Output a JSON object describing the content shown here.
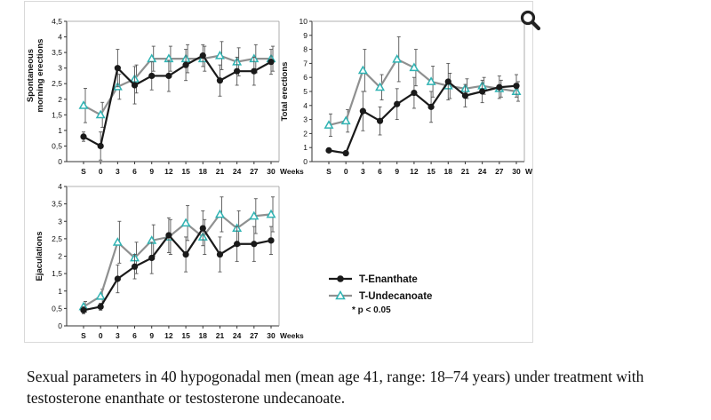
{
  "caption": "Sexual parameters in 40 hypogonadal men (mean age 41, range: 18–74 years) under treatment with testosterone enanthate or testosterone undecanoate.",
  "zoom_icon": "magnifier-icon",
  "legend": {
    "series_1": "T-Enanthate",
    "series_2": "T-Undecanoate",
    "significance": "* p < 0.05"
  },
  "colors": {
    "enanthate": "#1a1a1a",
    "undecanoate": "#2fb3b3",
    "errorbar": "#555555"
  },
  "chart_data": [
    {
      "type": "line",
      "ylabel": "Spontaneous morning erections",
      "xlabel": "Weeks",
      "categories": [
        "S",
        "0",
        "3",
        "6",
        "9",
        "12",
        "15",
        "18",
        "21",
        "24",
        "27",
        "30"
      ],
      "ylim": [
        0,
        4.5
      ],
      "yticks": [
        "0",
        "0,5",
        "1",
        "1,5",
        "2",
        "2,5",
        "3",
        "3,5",
        "4",
        "4,5"
      ],
      "series": [
        {
          "name": "T-Enanthate",
          "values": [
            0.8,
            0.5,
            3.0,
            2.45,
            2.75,
            2.75,
            3.1,
            3.4,
            2.6,
            2.9,
            2.9,
            3.2
          ],
          "errors": [
            0.15,
            0.45,
            0.6,
            0.6,
            0.45,
            0.5,
            0.5,
            0.35,
            0.5,
            0.45,
            0.45,
            0.4
          ]
        },
        {
          "name": "T-Undecanoate",
          "values": [
            1.8,
            1.5,
            2.4,
            2.65,
            3.3,
            3.3,
            3.3,
            3.3,
            3.4,
            3.2,
            3.3,
            3.3
          ],
          "errors": [
            0.55,
            0.4,
            0.4,
            0.45,
            0.4,
            0.4,
            0.45,
            0.4,
            0.45,
            0.45,
            0.45,
            0.4
          ]
        }
      ]
    },
    {
      "type": "line",
      "ylabel": "Total erections",
      "xlabel": "Weeks",
      "categories": [
        "S",
        "0",
        "3",
        "6",
        "9",
        "12",
        "15",
        "18",
        "21",
        "24",
        "27",
        "30"
      ],
      "ylim": [
        0,
        10
      ],
      "yticks": [
        "0",
        "1",
        "2",
        "3",
        "4",
        "5",
        "6",
        "7",
        "8",
        "9",
        "10"
      ],
      "series": [
        {
          "name": "T-Enanthate",
          "values": [
            0.8,
            0.6,
            3.6,
            2.9,
            4.1,
            4.9,
            3.9,
            5.7,
            4.7,
            5.0,
            5.3,
            5.4
          ],
          "errors": [
            0.0,
            0.0,
            1.4,
            1.0,
            1.1,
            1.1,
            1.1,
            1.3,
            0.8,
            0.8,
            0.8,
            0.8
          ]
        },
        {
          "name": "T-Undecanoate",
          "values": [
            2.6,
            2.9,
            6.5,
            5.3,
            7.3,
            6.7,
            5.7,
            5.4,
            5.2,
            5.4,
            5.2,
            5.0
          ],
          "errors": [
            0.8,
            0.8,
            1.5,
            0.9,
            1.6,
            1.3,
            1.1,
            0.9,
            0.7,
            0.6,
            0.6,
            0.7
          ]
        }
      ]
    },
    {
      "type": "line",
      "ylabel": "Ejaculations",
      "xlabel": "Weeks",
      "categories": [
        "S",
        "0",
        "3",
        "6",
        "9",
        "12",
        "15",
        "18",
        "21",
        "24",
        "27",
        "30"
      ],
      "ylim": [
        0,
        4
      ],
      "yticks": [
        "0",
        "0,5",
        "1",
        "1,5",
        "2",
        "2,5",
        "3",
        "3,5",
        "4"
      ],
      "series": [
        {
          "name": "T-Enanthate",
          "values": [
            0.45,
            0.55,
            1.35,
            1.7,
            1.95,
            2.6,
            2.05,
            2.8,
            2.05,
            2.35,
            2.35,
            2.45
          ],
          "errors": [
            0.1,
            0.1,
            0.4,
            0.35,
            0.45,
            0.5,
            0.5,
            0.5,
            0.5,
            0.5,
            0.5,
            0.4
          ]
        },
        {
          "name": "T-Undecanoate",
          "values": [
            0.55,
            0.85,
            2.4,
            1.95,
            2.45,
            2.55,
            2.95,
            2.55,
            3.2,
            2.8,
            3.15,
            3.2
          ],
          "errors": [
            0.15,
            0.2,
            0.6,
            0.45,
            0.45,
            0.5,
            0.5,
            0.5,
            0.5,
            0.5,
            0.5,
            0.5
          ]
        }
      ]
    }
  ]
}
